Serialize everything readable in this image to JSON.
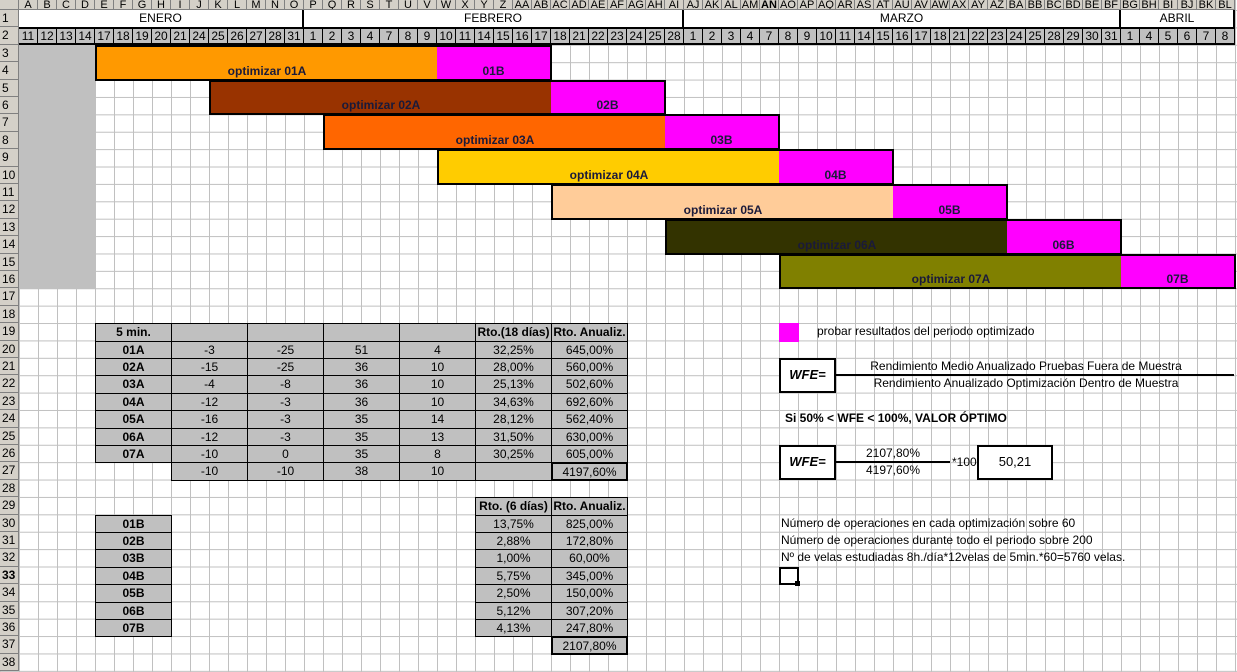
{
  "sheet": {
    "columns": [
      "A",
      "B",
      "C",
      "D",
      "E",
      "F",
      "G",
      "H",
      "I",
      "J",
      "K",
      "L",
      "M",
      "N",
      "O",
      "P",
      "Q",
      "R",
      "S",
      "T",
      "U",
      "V",
      "W",
      "X",
      "Y",
      "Z",
      "AA",
      "AB",
      "AC",
      "AD",
      "AE",
      "AF",
      "AG",
      "AH",
      "AI",
      "AJ",
      "AK",
      "AL",
      "AM",
      "AN",
      "AO",
      "AP",
      "AQ",
      "AR",
      "AS",
      "AT",
      "AU",
      "AV",
      "AW",
      "AX",
      "AY",
      "AZ",
      "BA",
      "BB",
      "BC",
      "BD",
      "BE",
      "BF",
      "BG",
      "BH",
      "BI",
      "BJ",
      "BK",
      "BL"
    ],
    "selected_column": "AN",
    "selected_row": 33,
    "row_count": 38
  },
  "months": [
    {
      "label": "ENERO",
      "days": [
        "11",
        "12",
        "13",
        "14",
        "17",
        "18",
        "19",
        "20",
        "21",
        "24",
        "25",
        "26",
        "27",
        "28",
        "31"
      ]
    },
    {
      "label": "FEBRERO",
      "days": [
        "1",
        "2",
        "3",
        "4",
        "7",
        "8",
        "9",
        "10",
        "11",
        "14",
        "15",
        "16",
        "17",
        "18",
        "21",
        "22",
        "23",
        "24",
        "25",
        "28"
      ]
    },
    {
      "label": "MARZO",
      "days": [
        "1",
        "2",
        "3",
        "4",
        "7",
        "8",
        "9",
        "10",
        "11",
        "14",
        "15",
        "16",
        "17",
        "18",
        "21",
        "22",
        "23",
        "24",
        "25",
        "28",
        "29",
        "30",
        "31"
      ]
    },
    {
      "label": "ABRIL",
      "days": [
        "1",
        "4",
        "5",
        "6",
        "7",
        "8"
      ]
    }
  ],
  "gantt": {
    "test_color": "#FF00FF",
    "block_color": "#C0C0C0",
    "bars": [
      {
        "opt_label": "optimizar 01A",
        "test_label": "01B",
        "color": "#FF9900"
      },
      {
        "opt_label": "optimizar 02A",
        "test_label": "02B",
        "color": "#993300"
      },
      {
        "opt_label": "optimizar 03A",
        "test_label": "03B",
        "color": "#FF6600"
      },
      {
        "opt_label": "optimizar 04A",
        "test_label": "04B",
        "color": "#FFCC00"
      },
      {
        "opt_label": "optimizar 05A",
        "test_label": "05B",
        "color": "#FFCC99"
      },
      {
        "opt_label": "optimizar 06A",
        "test_label": "06B",
        "color": "#333300"
      },
      {
        "opt_label": "optimizar 07A",
        "test_label": "07B",
        "color": "#808000"
      }
    ]
  },
  "table_a": {
    "header": [
      "5 min.",
      "",
      "",
      "",
      "",
      "Rto.(18 días)",
      "Rto. Anualiz."
    ],
    "rows": [
      [
        "01A",
        "-3",
        "-25",
        "51",
        "4",
        "32,25%",
        "645,00%"
      ],
      [
        "02A",
        "-15",
        "-25",
        "36",
        "10",
        "28,00%",
        "560,00%"
      ],
      [
        "03A",
        "-4",
        "-8",
        "36",
        "10",
        "25,13%",
        "502,60%"
      ],
      [
        "04A",
        "-12",
        "-3",
        "36",
        "10",
        "34,63%",
        "692,60%"
      ],
      [
        "05A",
        "-16",
        "-3",
        "35",
        "14",
        "28,12%",
        "562,40%"
      ],
      [
        "06A",
        "-12",
        "-3",
        "35",
        "13",
        "31,50%",
        "630,00%"
      ],
      [
        "07A",
        "-10",
        "0",
        "35",
        "8",
        "30,25%",
        "605,00%"
      ]
    ],
    "summary": [
      "-10",
      "-10",
      "38",
      "10"
    ],
    "total": "4197,60%"
  },
  "table_b": {
    "header": [
      "Rto. (6 días)",
      "Rto. Anualiz."
    ],
    "rows": [
      [
        "01B",
        "13,75%",
        "825,00%"
      ],
      [
        "02B",
        "2,88%",
        "172,80%"
      ],
      [
        "03B",
        "1,00%",
        "60,00%"
      ],
      [
        "04B",
        "5,75%",
        "345,00%"
      ],
      [
        "05B",
        "2,50%",
        "150,00%"
      ],
      [
        "06B",
        "5,12%",
        "307,20%"
      ],
      [
        "07B",
        "4,13%",
        "247,80%"
      ]
    ],
    "total": "2107,80%"
  },
  "notes": {
    "legend_text": "probar resultados del periodo optimizado",
    "wfe_label": "WFE=",
    "formula_numerator": "Rendimiento Medio Anualizado Pruebas Fuera de Muestra",
    "formula_denominator": "Rendimiento Anualizado Optimización Dentro de Muestra",
    "optimal_rule": "Si 50% < WFE < 100%, VALOR ÓPTIMO",
    "calc_numerator": "2107,80%",
    "calc_denominator": "4197,60%",
    "calc_multiplier": "*100=",
    "calc_result": "50,21",
    "lines": [
      "Número de operaciones en cada optimización sobre 60",
      "Número de operaciones durante todo el periodo sobre 200",
      "Nº de velas estudiadas 8h./día*12velas de 5min.*60=5760 velas."
    ]
  }
}
